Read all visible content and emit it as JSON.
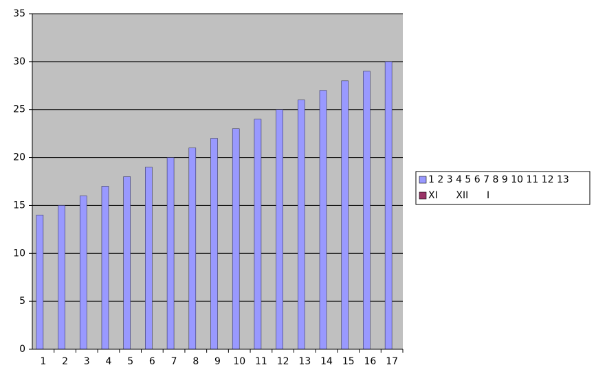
{
  "chart_data": {
    "type": "bar",
    "categories": [
      "1",
      "2",
      "3",
      "4",
      "5",
      "6",
      "7",
      "8",
      "9",
      "10",
      "11",
      "12",
      "13",
      "14",
      "15",
      "16",
      "17"
    ],
    "series": [
      {
        "name": "1 2 3 4 5 6 7 8 9 10 11 12 13",
        "color": "#9999ff",
        "values": [
          14,
          15,
          16,
          17,
          18,
          19,
          20,
          21,
          22,
          23,
          24,
          25,
          26,
          27,
          28,
          29,
          30
        ]
      },
      {
        "name": "XI      XII      I",
        "color": "#993366",
        "values": [
          null,
          null,
          null,
          null,
          null,
          null,
          null,
          null,
          null,
          null,
          null,
          null,
          null,
          null,
          null,
          null,
          null
        ]
      }
    ],
    "ylim": [
      0,
      35
    ],
    "yticks": [
      0,
      5,
      10,
      15,
      20,
      25,
      30,
      35
    ],
    "grid": true,
    "legend": "right"
  }
}
